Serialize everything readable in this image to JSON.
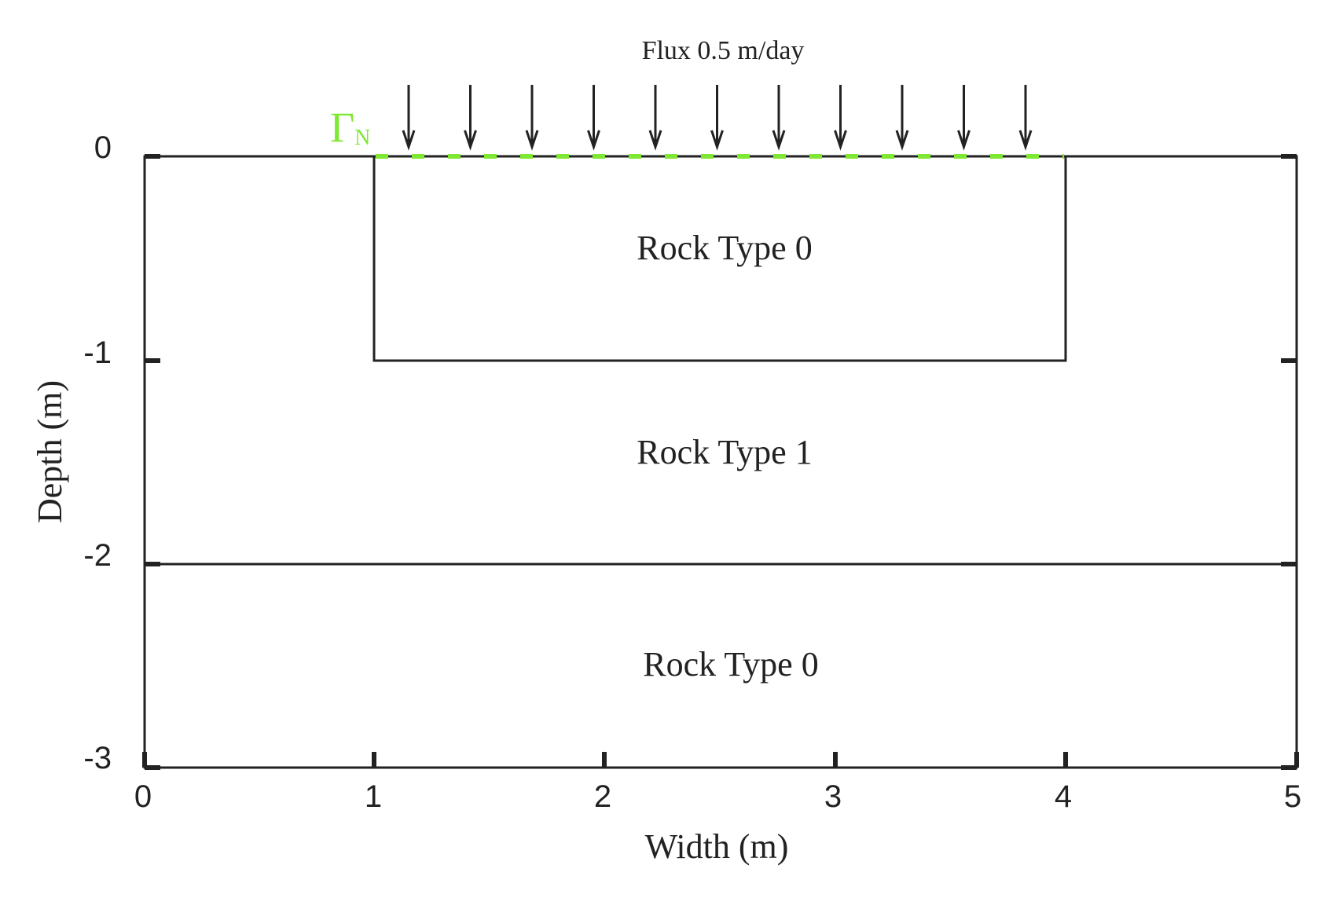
{
  "flux_label": "Flux 0.5 m/day",
  "boundary_label": {
    "symbol": "Γ",
    "subscript": "N",
    "color": "#7fe832"
  },
  "axes": {
    "xlabel": "Width (m)",
    "ylabel": "Depth (m)",
    "x_ticks": [
      "0",
      "1",
      "2",
      "3",
      "4",
      "5"
    ],
    "y_ticks": [
      "0",
      "-1",
      "-2",
      "-3"
    ],
    "xlim": [
      0,
      5
    ],
    "ylim": [
      -3,
      0
    ]
  },
  "regions": [
    {
      "label": "Rock Type 0",
      "x_range": [
        1,
        4
      ],
      "y_range": [
        -1,
        0
      ]
    },
    {
      "label": "Rock Type 1",
      "x_range": [
        0,
        5
      ],
      "y_range": [
        -2,
        0
      ]
    },
    {
      "label": "Rock Type 0",
      "x_range": [
        0,
        5
      ],
      "y_range": [
        -3,
        -2
      ]
    }
  ],
  "flux_boundary": {
    "x_range": [
      1,
      4
    ],
    "y": 0,
    "arrow_count": 11,
    "line_color": "#7fe832"
  },
  "colors": {
    "lines": "#222222",
    "boundary": "#7fe832"
  }
}
